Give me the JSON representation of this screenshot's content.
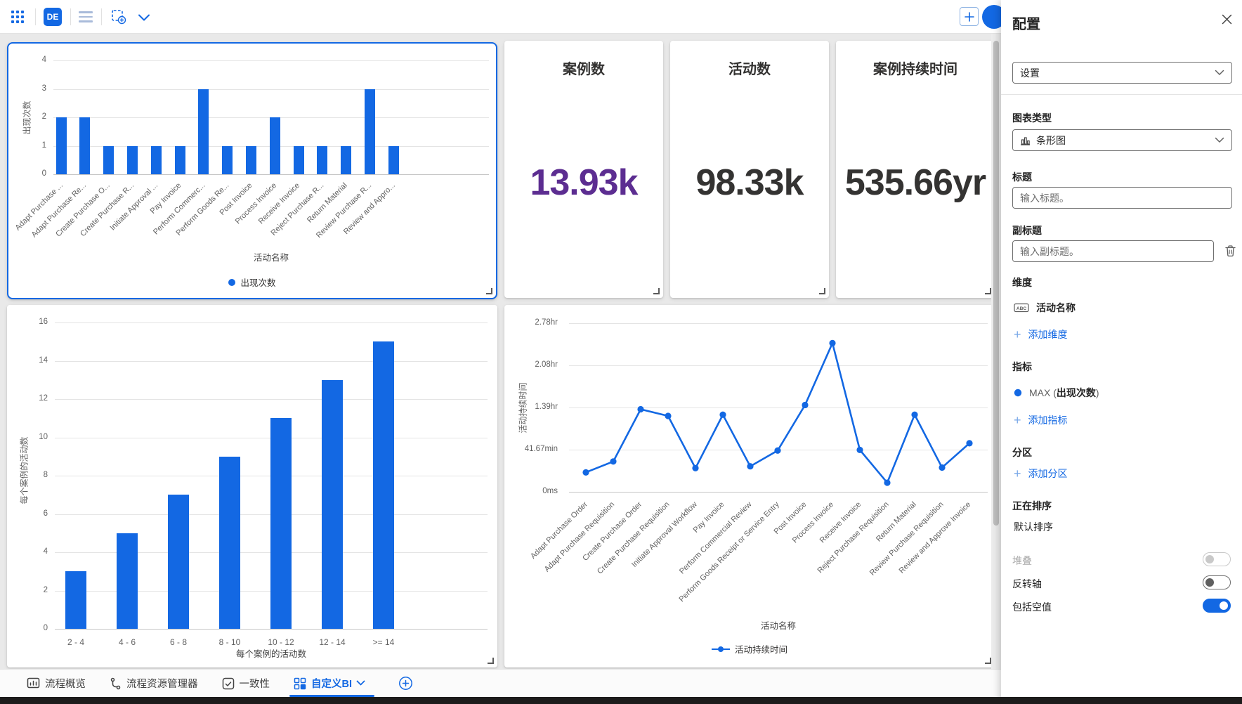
{
  "topbar": {
    "app_badge": "DE"
  },
  "kpis": [
    {
      "title": "案例数",
      "value": "13.93k",
      "value_color": "#5c2d91"
    },
    {
      "title": "活动数",
      "value": "98.33k",
      "value_color": "#343332"
    },
    {
      "title": "案例持续时间",
      "value": "535.66yr",
      "value_color": "#343332"
    }
  ],
  "chart_data": [
    {
      "type": "bar",
      "title": "",
      "xlabel": "活动名称",
      "ylabel": "出现次数",
      "legend": "出现次数",
      "legend_position": "bottom",
      "grid": true,
      "ylim": [
        0,
        4
      ],
      "yticks": [
        0,
        1,
        2,
        3,
        4
      ],
      "categories": [
        "Adapt Purchase ...",
        "Adapt Purchase Re...",
        "Create Purchase O...",
        "Create Purchase R...",
        "Initiate Approval ...",
        "Pay Invoice",
        "Perform Commerc...",
        "Perform Goods Re...",
        "Post Invoice",
        "Process Invoice",
        "Receive Invoice",
        "Reject Purchase R...",
        "Return Material",
        "Review Purchase R...",
        "Review and Appro..."
      ],
      "values": [
        2,
        2,
        1,
        1,
        1,
        1,
        3,
        1,
        1,
        2,
        1,
        1,
        1,
        3,
        1
      ],
      "bar_color": "#1368e3"
    },
    {
      "type": "bar",
      "title": "",
      "xlabel": "每个案例的活动数",
      "ylabel": "每个案例的活动数",
      "legend": "",
      "grid": true,
      "ylim": [
        0,
        16
      ],
      "yticks": [
        0,
        2,
        4,
        6,
        8,
        10,
        12,
        14,
        16
      ],
      "categories": [
        "2 - 4",
        "4 - 6",
        "6 - 8",
        "8 - 10",
        "10 - 12",
        "12 - 14",
        ">= 14"
      ],
      "values": [
        3,
        5,
        7,
        9,
        11,
        13,
        15
      ],
      "bar_color": "#1368e3"
    },
    {
      "type": "line",
      "title": "",
      "xlabel": "活动名称",
      "ylabel": "活动持续时间",
      "legend": "活动持续时间",
      "legend_position": "bottom",
      "grid": true,
      "unit": "hours",
      "ylim": [
        0,
        2.7778
      ],
      "ytick_values": [
        0,
        0.6944,
        1.3889,
        2.0833,
        2.7778
      ],
      "ytick_labels": [
        "0ms",
        "41.67min",
        "1.39hr",
        "2.08hr",
        "2.78hr"
      ],
      "categories": [
        "Adapt Purchase Order",
        "Adapt Purchase Requisition",
        "Create Purchase Order",
        "Create Purchase Requisition",
        "Initiate Approval Workflow",
        "Pay Invoice",
        "Perform Commercial Review",
        "Perform Goods Receipt or Service Entry",
        "Post Invoice",
        "Process Invoice",
        "Receive Invoice",
        "Reject Purchase Requisition",
        "Return Material",
        "Review Purchase Requisition",
        "Review and Approve Invoice"
      ],
      "values": [
        0.32,
        0.5,
        1.36,
        1.25,
        0.39,
        1.27,
        0.42,
        0.68,
        1.43,
        2.45,
        0.69,
        0.15,
        1.27,
        0.4,
        0.8
      ],
      "line_color": "#1368e3"
    }
  ],
  "tabs": [
    {
      "label": "流程概览",
      "active": false
    },
    {
      "label": "流程资源管理器",
      "active": false
    },
    {
      "label": "一致性",
      "active": false
    },
    {
      "label": "自定义BI",
      "active": true
    }
  ],
  "panel": {
    "title": "配置",
    "settings_dropdown": "设置",
    "chart_type_label": "图表类型",
    "chart_type_value": "条形图",
    "title_label": "标题",
    "title_placeholder": "输入标题。",
    "subtitle_label": "副标题",
    "subtitle_placeholder": "输入副标题。",
    "dimension_label": "维度",
    "dimension_item": "活动名称",
    "add_dimension": "添加维度",
    "metric_label": "指标",
    "metric_item": {
      "prefix": "MAX (",
      "name": "出现次数",
      "suffix": ")"
    },
    "add_metric": "添加指标",
    "partition_label": "分区",
    "add_partition": "添加分区",
    "sorting_label": "正在排序",
    "sorting_value": "默认排序",
    "toggles": [
      {
        "label": "堆叠",
        "state": "off",
        "disabled": true
      },
      {
        "label": "反转轴",
        "state": "off",
        "disabled": false
      },
      {
        "label": "包括空值",
        "state": "on",
        "disabled": false
      }
    ],
    "accent_color": "#1368e3"
  }
}
